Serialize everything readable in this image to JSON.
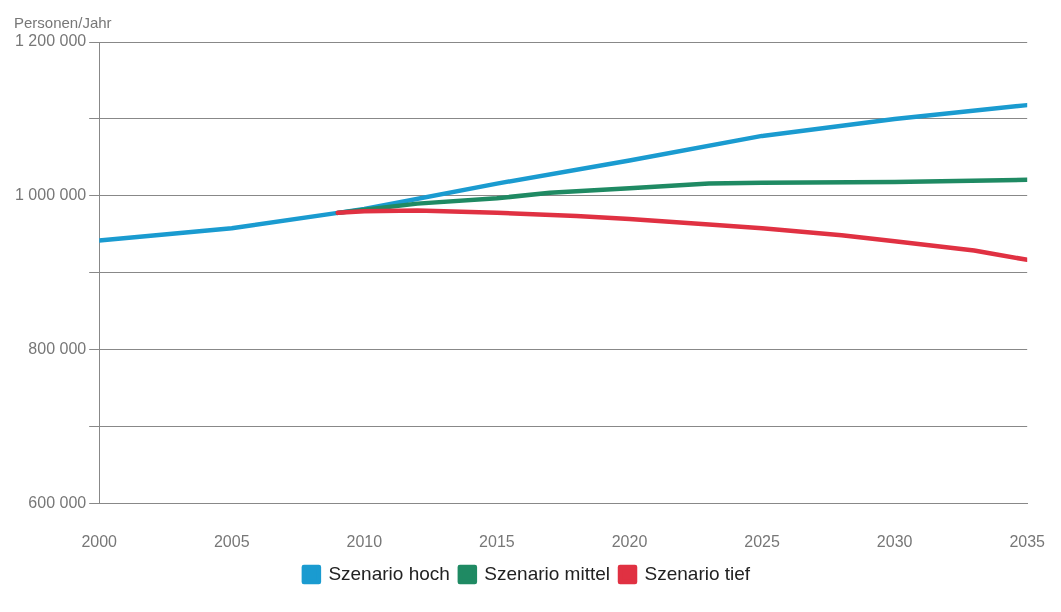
{
  "chart_data": {
    "type": "line",
    "ylabel": "Personen/Jahr",
    "xlim": [
      2000,
      2035
    ],
    "xticks": [
      2000,
      2005,
      2010,
      2015,
      2020,
      2025,
      2030,
      2035
    ],
    "ylim": [
      600000,
      1200000
    ],
    "yticks": [
      {
        "value": 600000,
        "label": "600 000"
      },
      {
        "value": 700000,
        "label": null
      },
      {
        "value": 800000,
        "label": "800 000"
      },
      {
        "value": 900000,
        "label": null
      },
      {
        "value": 1000000,
        "label": "1 000 000"
      },
      {
        "value": 1100000,
        "label": null
      },
      {
        "value": 1200000,
        "label": "1 200 000"
      }
    ],
    "grid": "y",
    "legend": "bottom",
    "marker": "none",
    "line_style": "solid",
    "series": [
      {
        "name": "Szenario tief",
        "color": "#e03142",
        "x": [
          2009,
          2010,
          2012,
          2015,
          2018,
          2020,
          2023,
          2025,
          2028,
          2030,
          2033,
          2035
        ],
        "values": [
          978000,
          980000,
          981000,
          978000,
          974000,
          970000,
          963000,
          958000,
          949000,
          941000,
          929000,
          917000
        ]
      },
      {
        "name": "Szenario mittel",
        "color": "#1f8a63",
        "x": [
          2009,
          2010,
          2012,
          2015,
          2017,
          2020,
          2023,
          2025,
          2030,
          2035
        ],
        "values": [
          978000,
          982000,
          990000,
          997000,
          1004000,
          1010000,
          1016000,
          1017000,
          1018000,
          1021000
        ]
      },
      {
        "name": "Szenario hoch",
        "color": "#1a9bd0",
        "x": [
          2000,
          2005,
          2009,
          2010,
          2015,
          2020,
          2025,
          2030,
          2035
        ],
        "values": [
          942000,
          958000,
          978000,
          983000,
          1016000,
          1046000,
          1078000,
          1100000,
          1118000
        ]
      }
    ]
  }
}
